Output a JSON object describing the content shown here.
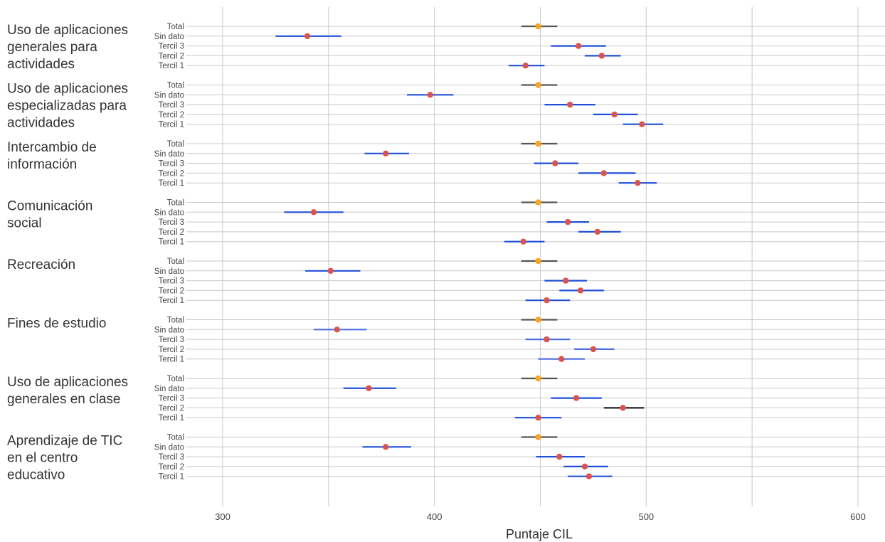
{
  "chart_data": {
    "type": "dot-errorbar",
    "xlabel": "Puntaje CIL",
    "x_ticks": [
      300,
      400,
      500,
      600
    ],
    "xlim": [
      265,
      615
    ],
    "grid": "vertical every 50",
    "colors": {
      "total_point": "#f5a623",
      "group_point": "#d9534f",
      "total_bar": "#555555",
      "sig_bar": "#1f4fd8",
      "nonsig_bar": "#1f4fd8",
      "sig_bar_alt": "#4a6fe0",
      "black_bar": "#222222"
    },
    "groups": [
      {
        "label_lines": [
          "Uso de aplicaciones",
          "generales para",
          "actividades"
        ],
        "rows": [
          {
            "label": "Total",
            "value": 449,
            "low": 441,
            "high": 458,
            "kind": "total"
          },
          {
            "label": "Sin dato",
            "value": 340,
            "low": 325,
            "high": 356,
            "kind": "sig"
          },
          {
            "label": "Tercil 3",
            "value": 468,
            "low": 455,
            "high": 481,
            "kind": "sig"
          },
          {
            "label": "Tercil 2",
            "value": 479,
            "low": 471,
            "high": 488,
            "kind": "sig"
          },
          {
            "label": "Tercil 1",
            "value": 443,
            "low": 435,
            "high": 452,
            "kind": "sig"
          }
        ]
      },
      {
        "label_lines": [
          "Uso de aplicaciones",
          "especializadas para",
          "actividades"
        ],
        "rows": [
          {
            "label": "Total",
            "value": 449,
            "low": 441,
            "high": 458,
            "kind": "total"
          },
          {
            "label": "Sin dato",
            "value": 398,
            "low": 387,
            "high": 409,
            "kind": "sig"
          },
          {
            "label": "Tercil 3",
            "value": 464,
            "low": 452,
            "high": 476,
            "kind": "sig"
          },
          {
            "label": "Tercil 2",
            "value": 485,
            "low": 475,
            "high": 496,
            "kind": "sig"
          },
          {
            "label": "Tercil 1",
            "value": 498,
            "low": 489,
            "high": 508,
            "kind": "sig"
          }
        ]
      },
      {
        "label_lines": [
          "Intercambio de",
          "información"
        ],
        "rows": [
          {
            "label": "Total",
            "value": 449,
            "low": 441,
            "high": 458,
            "kind": "total"
          },
          {
            "label": "Sin dato",
            "value": 377,
            "low": 367,
            "high": 388,
            "kind": "sig"
          },
          {
            "label": "Tercil 3",
            "value": 457,
            "low": 447,
            "high": 468,
            "kind": "sig"
          },
          {
            "label": "Tercil 2",
            "value": 480,
            "low": 468,
            "high": 495,
            "kind": "sig"
          },
          {
            "label": "Tercil 1",
            "value": 496,
            "low": 487,
            "high": 505,
            "kind": "sig"
          }
        ]
      },
      {
        "label_lines": [
          "Comunicación",
          "social"
        ],
        "rows": [
          {
            "label": "Total",
            "value": 449,
            "low": 441,
            "high": 458,
            "kind": "total"
          },
          {
            "label": "Sin dato",
            "value": 343,
            "low": 329,
            "high": 357,
            "kind": "sig"
          },
          {
            "label": "Tercil 3",
            "value": 463,
            "low": 453,
            "high": 473,
            "kind": "sig"
          },
          {
            "label": "Tercil 2",
            "value": 477,
            "low": 468,
            "high": 488,
            "kind": "sig"
          },
          {
            "label": "Tercil 1",
            "value": 442,
            "low": 433,
            "high": 452,
            "kind": "sig"
          }
        ]
      },
      {
        "label_lines": [
          "Recreación"
        ],
        "rows": [
          {
            "label": "Total",
            "value": 449,
            "low": 441,
            "high": 458,
            "kind": "total"
          },
          {
            "label": "Sin dato",
            "value": 351,
            "low": 339,
            "high": 365,
            "kind": "sig"
          },
          {
            "label": "Tercil 3",
            "value": 462,
            "low": 452,
            "high": 472,
            "kind": "sig"
          },
          {
            "label": "Tercil 2",
            "value": 469,
            "low": 459,
            "high": 480,
            "kind": "sig"
          },
          {
            "label": "Tercil 1",
            "value": 453,
            "low": 443,
            "high": 464,
            "kind": "sig"
          }
        ]
      },
      {
        "label_lines": [
          "Fines de estudio"
        ],
        "rows": [
          {
            "label": "Total",
            "value": 449,
            "low": 441,
            "high": 458,
            "kind": "total"
          },
          {
            "label": "Sin dato",
            "value": 354,
            "low": 343,
            "high": 368,
            "kind": "sig_alt"
          },
          {
            "label": "Tercil 3",
            "value": 453,
            "low": 443,
            "high": 464,
            "kind": "sig_alt"
          },
          {
            "label": "Tercil 2",
            "value": 475,
            "low": 466,
            "high": 485,
            "kind": "sig_alt"
          },
          {
            "label": "Tercil 1",
            "value": 460,
            "low": 449,
            "high": 471,
            "kind": "sig_alt"
          }
        ]
      },
      {
        "label_lines": [
          "Uso de aplicaciones",
          "generales en clase"
        ],
        "rows": [
          {
            "label": "Total",
            "value": 449,
            "low": 441,
            "high": 458,
            "kind": "total"
          },
          {
            "label": "Sin dato",
            "value": 369,
            "low": 357,
            "high": 382,
            "kind": "sig"
          },
          {
            "label": "Tercil 3",
            "value": 467,
            "low": 455,
            "high": 479,
            "kind": "sig"
          },
          {
            "label": "Tercil 2",
            "value": 489,
            "low": 480,
            "high": 499,
            "kind": "black"
          },
          {
            "label": "Tercil 1",
            "value": 449,
            "low": 438,
            "high": 460,
            "kind": "sig"
          }
        ]
      },
      {
        "label_lines": [
          "Aprendizaje de TIC",
          "en el centro",
          "educativo"
        ],
        "rows": [
          {
            "label": "Total",
            "value": 449,
            "low": 441,
            "high": 458,
            "kind": "total"
          },
          {
            "label": "Sin dato",
            "value": 377,
            "low": 366,
            "high": 389,
            "kind": "sig"
          },
          {
            "label": "Tercil 3",
            "value": 459,
            "low": 448,
            "high": 471,
            "kind": "sig"
          },
          {
            "label": "Tercil 2",
            "value": 471,
            "low": 461,
            "high": 482,
            "kind": "sig"
          },
          {
            "label": "Tercil 1",
            "value": 473,
            "low": 463,
            "high": 484,
            "kind": "sig"
          }
        ]
      }
    ]
  }
}
